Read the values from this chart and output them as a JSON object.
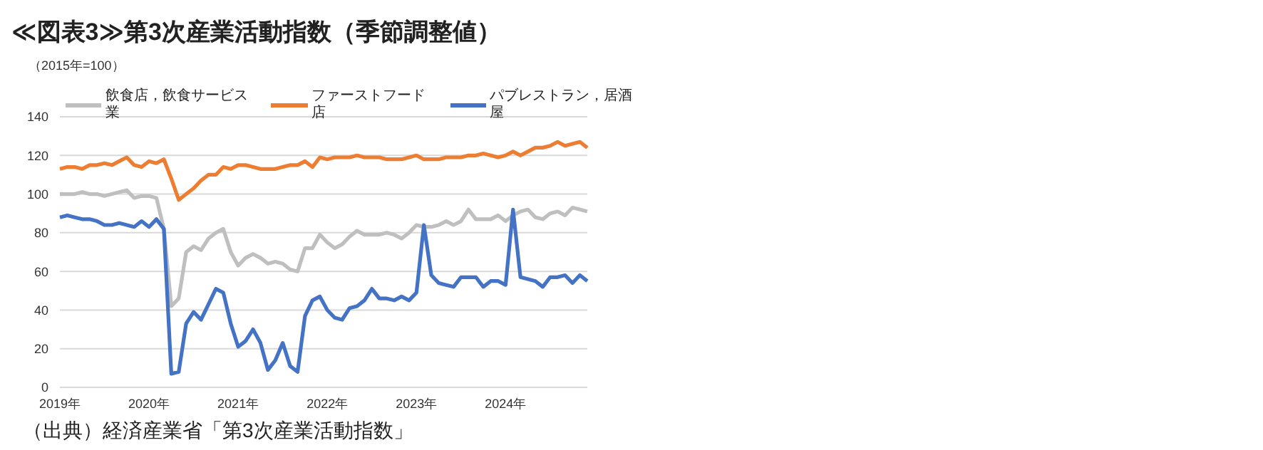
{
  "chart_data": {
    "type": "line",
    "title": "≪図表3≫第3次産業活動指数（季節調整値）",
    "annotations": [
      "（2015年=100）",
      "（出典）経済産業省「第3次産業活動指数」"
    ],
    "categories": [
      "2019年",
      null,
      null,
      null,
      null,
      null,
      null,
      null,
      null,
      null,
      null,
      null,
      "2020年",
      null,
      null,
      null,
      null,
      null,
      null,
      null,
      null,
      null,
      null,
      null,
      "2021年",
      null,
      null,
      null,
      null,
      null,
      null,
      null,
      null,
      null,
      null,
      null,
      "2022年",
      null,
      null,
      null,
      null,
      null,
      null,
      null,
      null,
      null,
      null,
      null,
      "2023年",
      null,
      null,
      null,
      null,
      null,
      null,
      null,
      null,
      null,
      null,
      null,
      "2024年",
      null,
      null,
      null,
      null,
      null,
      null,
      null,
      null,
      null,
      null,
      null
    ],
    "series": [
      {
        "name": "飲食店，飲食サービス業",
        "color": "#bfbfbf",
        "values": [
          100,
          100,
          100,
          101,
          100,
          100,
          99,
          100,
          101,
          102,
          98,
          99,
          99,
          98,
          82,
          42,
          46,
          70,
          73,
          71,
          77,
          80,
          82,
          70,
          63,
          67,
          69,
          67,
          64,
          65,
          64,
          61,
          60,
          72,
          72,
          79,
          75,
          72,
          74,
          78,
          81,
          79,
          79,
          79,
          80,
          79,
          77,
          80,
          84,
          83,
          83,
          84,
          86,
          84,
          86,
          92,
          87,
          87,
          87,
          89,
          86,
          89,
          91,
          92,
          88,
          87,
          90,
          91,
          89,
          93,
          92,
          91
        ]
      },
      {
        "name": "ファーストフード店",
        "color": "#ed7d31",
        "values": [
          113,
          114,
          114,
          113,
          115,
          115,
          116,
          115,
          117,
          119,
          115,
          114,
          117,
          116,
          118,
          108,
          97,
          100,
          103,
          107,
          110,
          110,
          114,
          113,
          115,
          115,
          114,
          113,
          113,
          113,
          114,
          115,
          115,
          117,
          114,
          119,
          118,
          119,
          119,
          119,
          120,
          119,
          119,
          119,
          118,
          118,
          118,
          119,
          120,
          118,
          118,
          118,
          119,
          119,
          119,
          120,
          120,
          121,
          120,
          119,
          120,
          122,
          120,
          122,
          124,
          124,
          125,
          127,
          125,
          126,
          127,
          124
        ]
      },
      {
        "name": "パブレストラン，居酒屋",
        "color": "#4472c4",
        "values": [
          88,
          89,
          88,
          87,
          87,
          86,
          84,
          84,
          85,
          84,
          83,
          86,
          83,
          87,
          82,
          7,
          8,
          33,
          39,
          35,
          43,
          51,
          49,
          33,
          21,
          24,
          30,
          23,
          9,
          14,
          23,
          11,
          8,
          37,
          45,
          47,
          40,
          36,
          35,
          41,
          42,
          45,
          51,
          46,
          46,
          45,
          47,
          45,
          49,
          84,
          58,
          54,
          53,
          52,
          57,
          57,
          57,
          52,
          55,
          55,
          53,
          92,
          57,
          56,
          55,
          52,
          57,
          57,
          58,
          54,
          58,
          55
        ]
      }
    ],
    "ylim": [
      0,
      140
    ],
    "yticks": [
      0,
      20,
      40,
      60,
      80,
      100,
      120,
      140
    ],
    "grid": "y",
    "legend": "top",
    "marker": "none",
    "line_style": "solid"
  }
}
